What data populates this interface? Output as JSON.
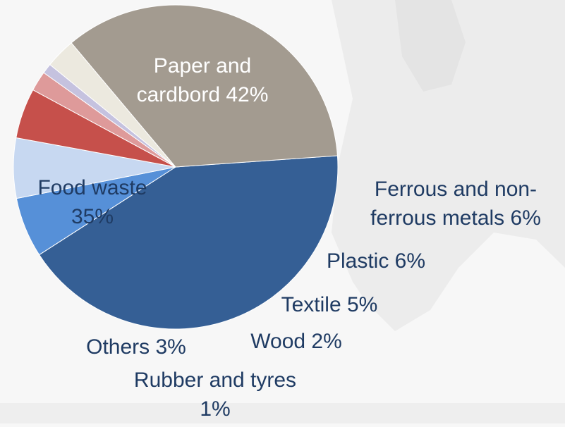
{
  "chart_data": {
    "type": "pie",
    "title": "",
    "slices": [
      {
        "label_lines": [
          "Paper and",
          "cardbord 42%"
        ],
        "value": 42,
        "color": "#355f95"
      },
      {
        "label_lines": [
          "Ferrous and non-",
          "ferrous metals 6%"
        ],
        "value": 6,
        "color": "#5690d8"
      },
      {
        "label_lines": [
          "Plastic 6%"
        ],
        "value": 6,
        "color": "#c7d8f1"
      },
      {
        "label_lines": [
          "Textile 5%"
        ],
        "value": 5,
        "color": "#c6504b"
      },
      {
        "label_lines": [
          "Wood 2%"
        ],
        "value": 2,
        "color": "#de9a9a"
      },
      {
        "label_lines": [
          "Rubber and tyres",
          "1%"
        ],
        "value": 1,
        "color": "#c5c2df"
      },
      {
        "label_lines": [
          "Others 3%"
        ],
        "value": 3,
        "color": "#ece9df"
      },
      {
        "label_lines": [
          "Food waste",
          "35%"
        ],
        "value": 35,
        "color": "#a39b90"
      }
    ]
  }
}
